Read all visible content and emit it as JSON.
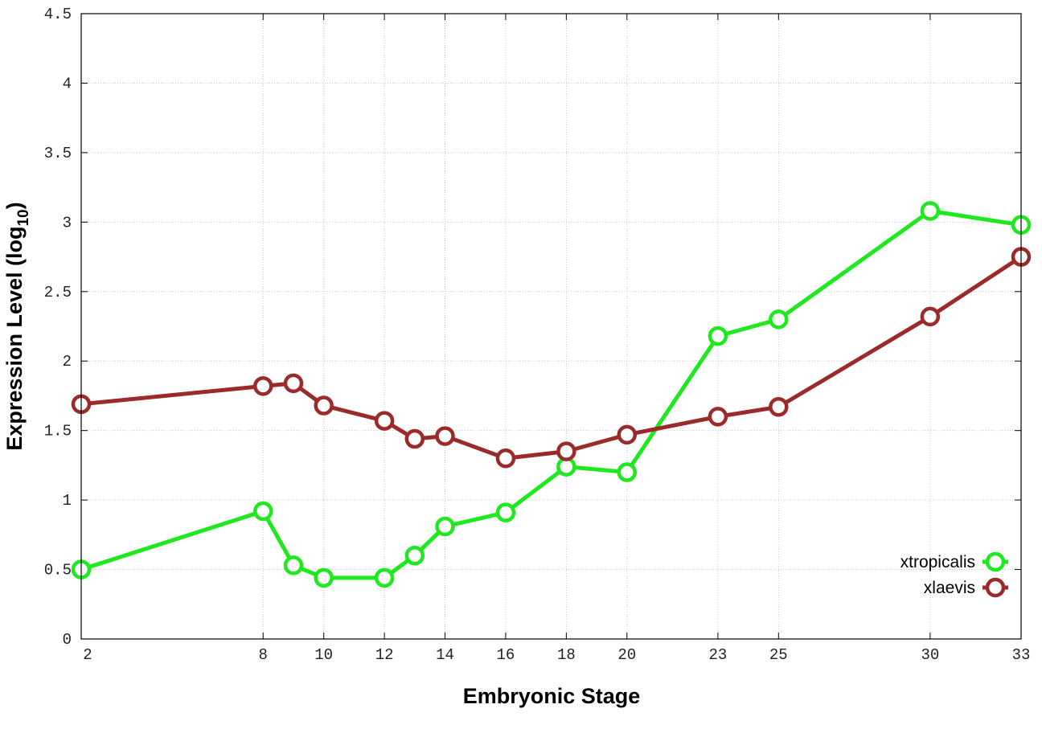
{
  "chart_data": {
    "type": "line",
    "title": "",
    "xlabel": "Embryonic Stage",
    "ylabel": "Expression Level (log",
    "ylabel_subscript": "10",
    "ylabel_suffix": ")",
    "xlim": [
      2,
      33
    ],
    "ylim": [
      0,
      4.5
    ],
    "x_ticks": [
      2,
      8,
      10,
      12,
      14,
      16,
      18,
      20,
      23,
      25,
      30,
      33
    ],
    "y_ticks": [
      "0",
      "0.5",
      "1",
      "1.5",
      "2",
      "2.5",
      "3",
      "3.5",
      "4",
      "4.5"
    ],
    "grid": true,
    "legend_position": "bottom-right",
    "x": [
      2,
      8,
      9,
      10,
      12,
      13,
      14,
      16,
      18,
      20,
      23,
      25,
      30,
      33
    ],
    "series": [
      {
        "name": "xtropicalis",
        "color": "#1ee81e",
        "values": [
          0.5,
          0.92,
          0.53,
          0.44,
          0.44,
          0.6,
          0.81,
          0.91,
          1.24,
          1.2,
          2.18,
          2.3,
          3.08,
          2.98
        ]
      },
      {
        "name": "xlaevis",
        "color": "#9b2a2a",
        "values": [
          1.69,
          1.82,
          1.84,
          1.68,
          1.57,
          1.44,
          1.46,
          1.3,
          1.35,
          1.47,
          1.6,
          1.67,
          2.32,
          2.75
        ]
      }
    ]
  }
}
